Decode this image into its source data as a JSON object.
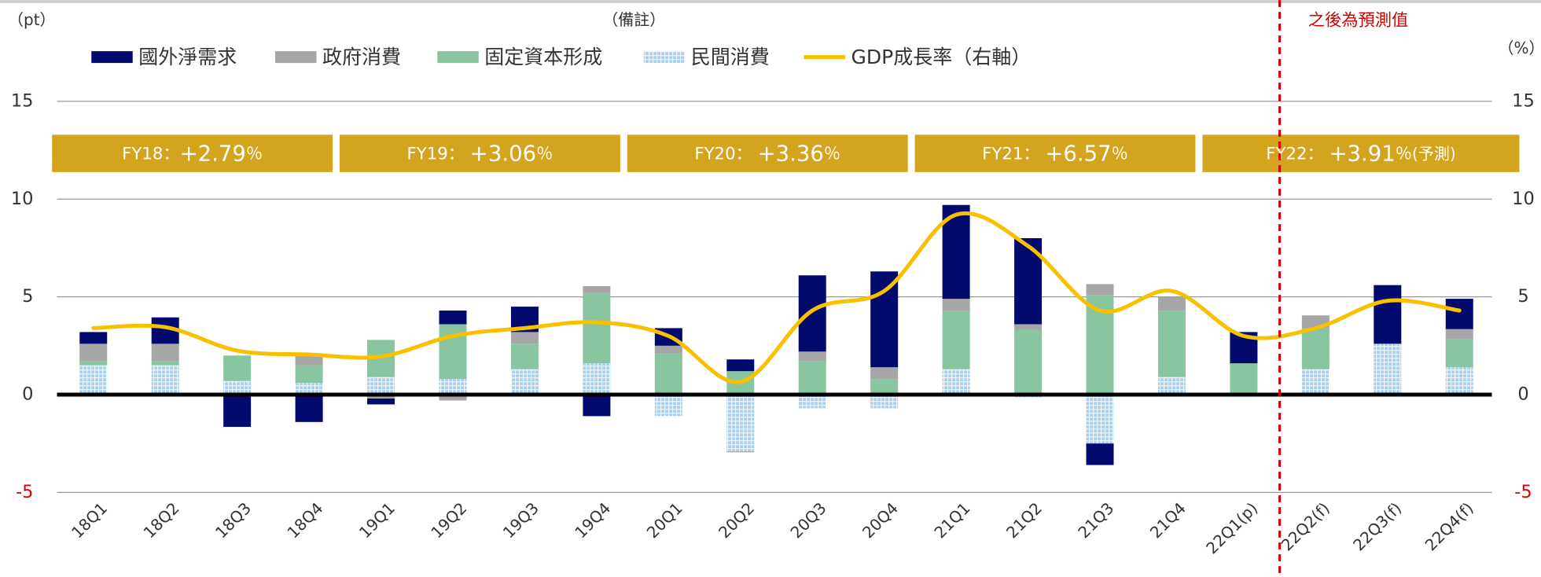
{
  "chart_data": {
    "type": "bar",
    "left_unit": "（pt）",
    "note": "（備註）",
    "right_unit": "（%）",
    "forecast_label": "之後為預測值",
    "categories": [
      "18Q1",
      "18Q2",
      "18Q3",
      "18Q4",
      "19Q1",
      "19Q2",
      "19Q3",
      "19Q4",
      "20Q1",
      "20Q2",
      "20Q3",
      "20Q4",
      "21Q1",
      "21Q2",
      "21Q3",
      "21Q4",
      "22Q1(p)",
      "22Q2(f)",
      "22Q3(f)",
      "22Q4(f)"
    ],
    "series": [
      {
        "name": "國外淨需求",
        "color": "#020a6e",
        "values": [
          0.6,
          1.35,
          -1.65,
          -1.4,
          -0.3,
          0.7,
          1.3,
          -1.1,
          0.9,
          0.6,
          3.9,
          4.9,
          4.8,
          4.4,
          -1.1,
          0,
          1.6,
          0,
          3.0,
          1.55
        ]
      },
      {
        "name": "政府消費",
        "color": "#a6a6a6",
        "values": [
          0.9,
          0.9,
          0,
          0.5,
          -0.2,
          -0.3,
          0.6,
          0.35,
          0.4,
          -0.05,
          0.5,
          0.6,
          0.6,
          0.3,
          0.55,
          0.7,
          0,
          0.65,
          0,
          0.5
        ]
      },
      {
        "name": "固定資本形成",
        "color": "#8ac5a2",
        "values": [
          0.2,
          0.2,
          1.3,
          0.9,
          1.9,
          2.8,
          1.3,
          3.6,
          2.1,
          1.2,
          1.7,
          0.8,
          3.0,
          3.3,
          5.1,
          3.4,
          1.5,
          2.1,
          0,
          1.45
        ]
      },
      {
        "name": "民間消費",
        "color": "#a9cfee",
        "pattern": "grid",
        "values": [
          1.5,
          1.5,
          0.7,
          0.6,
          0.9,
          0.8,
          1.3,
          1.6,
          -1.1,
          -2.9,
          -0.7,
          -0.7,
          1.3,
          -0.15,
          -2.5,
          0.9,
          0.1,
          1.3,
          2.6,
          1.4
        ]
      },
      {
        "name": "GDP成長率（右軸）",
        "color": "#f9c000",
        "type": "line",
        "axis": "y2",
        "values": [
          3.4,
          3.45,
          2.25,
          2.05,
          1.95,
          3.0,
          3.4,
          3.7,
          3.0,
          0.65,
          4.3,
          5.3,
          9.2,
          7.6,
          4.3,
          5.3,
          3.0,
          3.4,
          4.8,
          4.3
        ]
      }
    ],
    "ylim": [
      -5,
      15
    ],
    "yticks": [
      -5,
      0,
      5,
      10,
      15
    ],
    "y2lim": [
      -5,
      15
    ],
    "y2ticks": [
      -5,
      0,
      5,
      10,
      15
    ],
    "negative_tick_color": "#e00000",
    "grid": true,
    "forecast_start_index": 17,
    "forecast_color": "#d00000",
    "banner_color": "#d5a41f",
    "banners": [
      {
        "prefix": "FY18：",
        "growth": "+2.79",
        "unit": "％"
      },
      {
        "prefix": "FY19： ",
        "growth": "+3.06",
        "unit": "％"
      },
      {
        "prefix": "FY20： ",
        "growth": "+3.36",
        "unit": "％"
      },
      {
        "prefix": "FY21： ",
        "growth": "+6.57",
        "unit": "％"
      },
      {
        "prefix": "FY22： ",
        "growth": "+3.91",
        "unit": "％",
        "suffix": "(予測)"
      }
    ]
  }
}
